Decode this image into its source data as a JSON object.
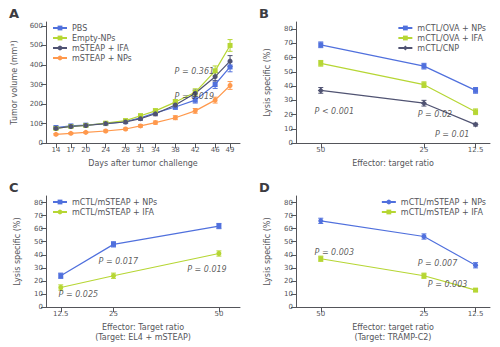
{
  "chart_data": [
    {
      "type": "line",
      "title": "A",
      "x": [
        14,
        17,
        20,
        24,
        28,
        31,
        34,
        38,
        42,
        46,
        49
      ],
      "series": [
        {
          "name": "PBS",
          "marker": "square",
          "values": [
            80,
            88,
            92,
            100,
            110,
            130,
            155,
            185,
            220,
            300,
            390
          ],
          "errors": [
            5,
            5,
            5,
            6,
            7,
            8,
            10,
            12,
            15,
            20,
            25
          ]
        },
        {
          "name": "Empty-NPs",
          "marker": "square",
          "values": [
            75,
            85,
            90,
            102,
            115,
            140,
            165,
            210,
            260,
            370,
            500
          ],
          "errors": [
            5,
            5,
            5,
            6,
            8,
            9,
            11,
            13,
            18,
            25,
            30
          ]
        },
        {
          "name": "mSTEAP + IFA",
          "marker": "circle",
          "values": [
            75,
            85,
            90,
            100,
            108,
            125,
            150,
            195,
            255,
            340,
            420
          ],
          "errors": [
            5,
            5,
            5,
            6,
            7,
            8,
            10,
            12,
            16,
            22,
            28
          ]
        },
        {
          "name": "mSTEAP + NPs",
          "marker": "circle",
          "values": [
            45,
            50,
            55,
            62,
            72,
            88,
            105,
            130,
            165,
            220,
            295
          ],
          "errors": [
            4,
            4,
            4,
            5,
            5,
            6,
            8,
            10,
            12,
            15,
            20
          ]
        }
      ],
      "xlabel": "Days after tumor challenge",
      "ylabel": "Tumor volume (mm³)",
      "xlim": [
        12,
        51
      ],
      "xticks": [
        14,
        17,
        20,
        24,
        28,
        31,
        34,
        38,
        42,
        46,
        49
      ],
      "ylim": [
        0,
        620
      ],
      "yticks": [
        0,
        100,
        200,
        300,
        400,
        500,
        600
      ],
      "grid": false,
      "legend": "upper left",
      "annotations": [
        {
          "text": "P = 0.361",
          "x": 46.2,
          "y": 365
        },
        {
          "text": "P = 0.019",
          "x": 46.2,
          "y": 237
        }
      ]
    },
    {
      "type": "line",
      "title": "B",
      "x": [
        50,
        25,
        12.5
      ],
      "series": [
        {
          "name": "mCTL/OVA + NPs",
          "marker": "square",
          "values": [
            69,
            54,
            37
          ],
          "errors": [
            2,
            2,
            2
          ]
        },
        {
          "name": "mCTL/OVA + IFA",
          "marker": "square",
          "values": [
            56,
            41,
            22
          ],
          "errors": [
            2,
            2,
            2
          ]
        },
        {
          "name": "mCTL/CNP",
          "marker": "diamond",
          "values": [
            37,
            28,
            13
          ],
          "errors": [
            2,
            2,
            1
          ]
        }
      ],
      "xlabel": "Effector: target ratio",
      "ylabel": "Lysis specific (%)",
      "xlim": [
        56,
        9
      ],
      "xticks": [
        50,
        25,
        12.5
      ],
      "ylim": [
        0,
        85
      ],
      "yticks": [
        0,
        10,
        20,
        30,
        40,
        50,
        60,
        70,
        80
      ],
      "grid": false,
      "legend": "upper right",
      "annotations": [
        {
          "text": "P < 0.001",
          "x": 52,
          "y": 22
        },
        {
          "text": "P = 0.02",
          "x": 27,
          "y": 20
        },
        {
          "text": "P = 0.01",
          "x": 13.5,
          "y": 6
        }
      ]
    },
    {
      "type": "line",
      "title": "C",
      "x": [
        12.5,
        25,
        50
      ],
      "series": [
        {
          "name": "mCTL/mSTEAP + NPs",
          "marker": "square",
          "values": [
            24,
            48,
            62
          ],
          "errors": [
            2,
            2,
            2
          ]
        },
        {
          "name": "mCTL/mSTEAP + IFA",
          "marker": "circle",
          "values": [
            15,
            24,
            41
          ],
          "errors": [
            2,
            2,
            2
          ]
        }
      ],
      "xlabel": "Effector: Target ratio\n(Target: EL4 + mSTEAP)",
      "ylabel": "Lysis specific (%)",
      "xlim": [
        9,
        55
      ],
      "xticks": [
        12.5,
        25,
        50
      ],
      "ylim": [
        0,
        85
      ],
      "yticks": [
        0,
        10,
        20,
        30,
        40,
        50,
        60,
        70,
        80
      ],
      "grid": false,
      "legend": "upper left",
      "annotations": [
        {
          "text": "P = 0.025",
          "x": 11.5,
          "y": 9.5
        },
        {
          "text": "P = 0.017",
          "x": 21,
          "y": 35
        },
        {
          "text": "P = 0.019",
          "x": 42,
          "y": 29
        }
      ]
    },
    {
      "type": "line",
      "title": "D",
      "x": [
        50,
        25,
        12.5
      ],
      "series": [
        {
          "name": "mCTL/mSTEAP + NPs",
          "marker": "circle",
          "values": [
            66,
            54,
            32
          ],
          "errors": [
            2,
            2,
            2
          ]
        },
        {
          "name": "mCTL/mSTEAP + IFA",
          "marker": "square",
          "values": [
            37,
            24,
            13
          ],
          "errors": [
            2,
            2,
            1
          ]
        }
      ],
      "xlabel": "Effector: target ratio\n(Target: TRAMP-C2)",
      "ylabel": "Lysis specific (%)",
      "xlim": [
        56,
        9
      ],
      "xticks": [
        50,
        25,
        12.5
      ],
      "ylim": [
        0,
        85
      ],
      "yticks": [
        0,
        10,
        20,
        30,
        40,
        50,
        60,
        70,
        80
      ],
      "grid": false,
      "legend": "upper right",
      "annotations": [
        {
          "text": "P = 0.003",
          "x": 52,
          "y": 42
        },
        {
          "text": "P = 0.007",
          "x": 27,
          "y": 33
        },
        {
          "text": "P = 0.003",
          "x": 14,
          "y": 17
        }
      ]
    }
  ]
}
